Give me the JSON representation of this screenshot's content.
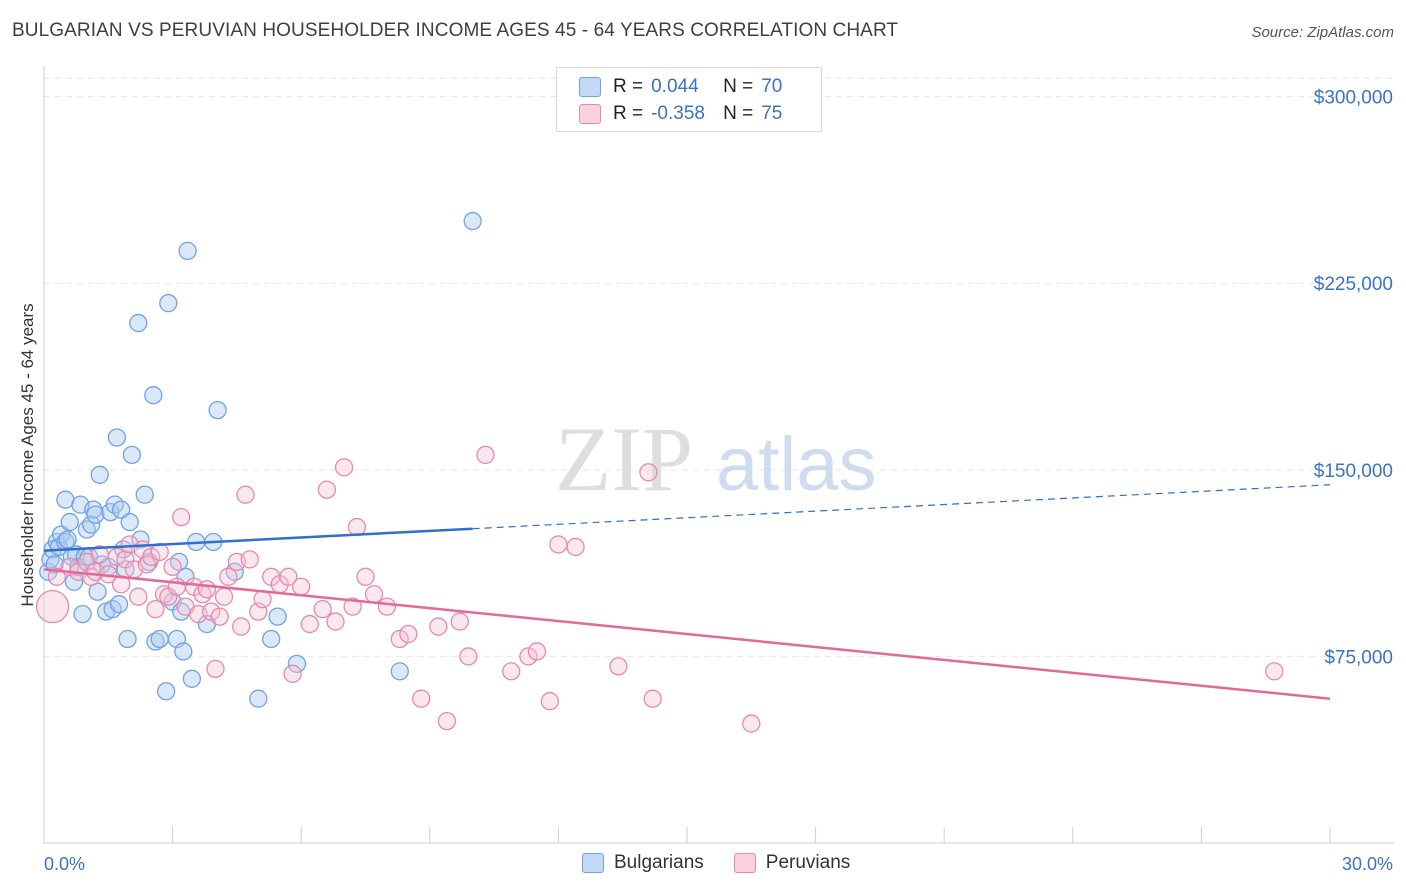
{
  "colors": {
    "blue": "#6fa3e6",
    "blue_fill": "#aecbf0",
    "blue_line": "#2e6fcf",
    "pink": "#e889ab",
    "pink_fill": "#f6c3d5",
    "pink_line": "#e06a98",
    "tick_text": "#3b73c4",
    "grid": "#e6e6e6"
  },
  "chart_data": {
    "type": "scatter",
    "title": "BULGARIAN VS PERUVIAN HOUSEHOLDER INCOME AGES 45 - 64 YEARS CORRELATION CHART",
    "source": "Source: ZipAtlas.com",
    "xlabel": "",
    "ylabel": "Householder Income Ages 45 - 64 years",
    "xlim": [
      0,
      30
    ],
    "ylim": [
      0,
      307500
    ],
    "x_tick_labels": [
      "0.0%",
      "30.0%"
    ],
    "y_ticks": [
      75000,
      150000,
      225000,
      300000
    ],
    "y_tick_labels": [
      "$75,000",
      "$150,000",
      "$225,000",
      "$300,000"
    ],
    "watermark": {
      "zip": "ZIP",
      "atlas": "atlas"
    },
    "legend": [
      {
        "name": "Bulgarians",
        "r_label": "R =",
        "r": "0.044",
        "n_label": "N =",
        "n": "70"
      },
      {
        "name": "Peruvians",
        "r_label": "R =",
        "r": "-0.358",
        "n_label": "N =",
        "n": "75"
      }
    ],
    "series": [
      {
        "name": "Bulgarians",
        "trend": {
          "x0": 0,
          "y0": 117500,
          "x1": 30,
          "y1": 144000,
          "solid_until": 10
        },
        "points": [
          [
            0.1,
            109000
          ],
          [
            0.15,
            114000
          ],
          [
            0.2,
            118000
          ],
          [
            0.25,
            112000
          ],
          [
            0.3,
            121000
          ],
          [
            0.35,
            119000
          ],
          [
            0.4,
            124000
          ],
          [
            0.5,
            121000
          ],
          [
            0.5,
            138000
          ],
          [
            0.55,
            122000
          ],
          [
            0.6,
            129000
          ],
          [
            0.65,
            115000
          ],
          [
            0.7,
            105000
          ],
          [
            0.75,
            116000
          ],
          [
            0.8,
            111000
          ],
          [
            0.85,
            136000
          ],
          [
            0.9,
            92000
          ],
          [
            0.95,
            115000
          ],
          [
            1.0,
            126000
          ],
          [
            1.05,
            115000
          ],
          [
            1.1,
            128000
          ],
          [
            1.15,
            134000
          ],
          [
            1.2,
            132000
          ],
          [
            1.25,
            101000
          ],
          [
            1.3,
            148000
          ],
          [
            1.35,
            112000
          ],
          [
            1.45,
            93000
          ],
          [
            1.5,
            111000
          ],
          [
            1.55,
            133000
          ],
          [
            1.6,
            94000
          ],
          [
            1.65,
            136000
          ],
          [
            1.7,
            163000
          ],
          [
            1.75,
            96000
          ],
          [
            1.8,
            134000
          ],
          [
            1.85,
            118000
          ],
          [
            1.9,
            110000
          ],
          [
            1.95,
            82000
          ],
          [
            2.0,
            129000
          ],
          [
            2.05,
            156000
          ],
          [
            2.2,
            209000
          ],
          [
            2.25,
            122000
          ],
          [
            2.35,
            140000
          ],
          [
            2.45,
            113000
          ],
          [
            2.55,
            180000
          ],
          [
            2.6,
            81000
          ],
          [
            2.7,
            82000
          ],
          [
            2.85,
            61000
          ],
          [
            2.9,
            217000
          ],
          [
            3.0,
            97000
          ],
          [
            3.1,
            82000
          ],
          [
            3.15,
            113000
          ],
          [
            3.2,
            93000
          ],
          [
            3.25,
            77000
          ],
          [
            3.3,
            107000
          ],
          [
            3.35,
            238000
          ],
          [
            3.45,
            66000
          ],
          [
            3.55,
            121000
          ],
          [
            3.8,
            88000
          ],
          [
            3.95,
            121000
          ],
          [
            4.05,
            174000
          ],
          [
            4.45,
            109000
          ],
          [
            5.0,
            58000
          ],
          [
            5.3,
            82000
          ],
          [
            5.45,
            91000
          ],
          [
            5.9,
            72000
          ],
          [
            8.3,
            69000
          ],
          [
            10.0,
            250000
          ]
        ]
      },
      {
        "name": "Peruvians",
        "trend": {
          "x0": 0,
          "y0": 110000,
          "x1": 30,
          "y1": 58000
        },
        "points": [
          [
            0.3,
            107000
          ],
          [
            0.6,
            111000
          ],
          [
            0.8,
            109000
          ],
          [
            1.0,
            113000
          ],
          [
            1.1,
            107000
          ],
          [
            1.2,
            109000
          ],
          [
            1.3,
            116000
          ],
          [
            1.5,
            108000
          ],
          [
            1.7,
            115000
          ],
          [
            1.8,
            104000
          ],
          [
            1.9,
            114000
          ],
          [
            2.0,
            120000
          ],
          [
            2.1,
            110000
          ],
          [
            2.2,
            99000
          ],
          [
            2.3,
            118000
          ],
          [
            2.4,
            112000
          ],
          [
            2.5,
            115000
          ],
          [
            2.6,
            94000
          ],
          [
            2.7,
            117000
          ],
          [
            2.8,
            100000
          ],
          [
            2.9,
            99000
          ],
          [
            3.0,
            111000
          ],
          [
            3.1,
            103000
          ],
          [
            3.2,
            131000
          ],
          [
            3.3,
            95000
          ],
          [
            3.5,
            103000
          ],
          [
            3.6,
            92000
          ],
          [
            3.7,
            100000
          ],
          [
            3.8,
            102000
          ],
          [
            3.9,
            93000
          ],
          [
            4.0,
            70000
          ],
          [
            4.1,
            91000
          ],
          [
            4.2,
            99000
          ],
          [
            4.3,
            107000
          ],
          [
            4.5,
            113000
          ],
          [
            4.6,
            87000
          ],
          [
            4.7,
            140000
          ],
          [
            4.8,
            114000
          ],
          [
            5.0,
            93000
          ],
          [
            5.1,
            98000
          ],
          [
            5.3,
            107000
          ],
          [
            5.5,
            104000
          ],
          [
            5.7,
            107000
          ],
          [
            5.8,
            68000
          ],
          [
            6.0,
            103000
          ],
          [
            6.2,
            88000
          ],
          [
            6.5,
            94000
          ],
          [
            6.6,
            142000
          ],
          [
            6.8,
            89000
          ],
          [
            7.0,
            151000
          ],
          [
            7.2,
            95000
          ],
          [
            7.3,
            127000
          ],
          [
            7.5,
            107000
          ],
          [
            7.7,
            100000
          ],
          [
            8.0,
            95000
          ],
          [
            8.3,
            82000
          ],
          [
            8.5,
            84000
          ],
          [
            8.8,
            58000
          ],
          [
            9.2,
            87000
          ],
          [
            9.4,
            49000
          ],
          [
            9.7,
            89000
          ],
          [
            9.9,
            75000
          ],
          [
            10.3,
            156000
          ],
          [
            10.9,
            69000
          ],
          [
            11.3,
            75000
          ],
          [
            11.5,
            77000
          ],
          [
            11.8,
            57000
          ],
          [
            12.0,
            120000
          ],
          [
            12.4,
            119000
          ],
          [
            13.4,
            71000
          ],
          [
            14.1,
            149000
          ],
          [
            14.2,
            58000
          ],
          [
            16.5,
            48000
          ],
          [
            28.7,
            69000
          ],
          [
            0.2,
            95000
          ]
        ]
      }
    ]
  }
}
